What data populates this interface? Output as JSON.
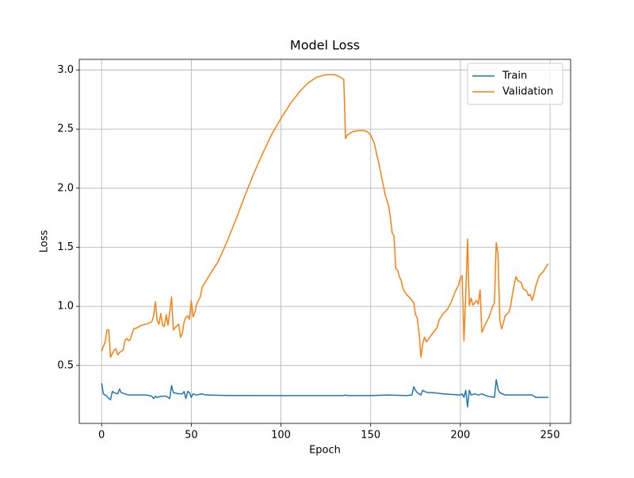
{
  "chart_data": {
    "type": "line",
    "title": "Model Loss",
    "xlabel": "Epoch",
    "ylabel": "Loss",
    "xlim": [
      -12.45,
      261.45
    ],
    "ylim": [
      0.01,
      3.09
    ],
    "xticks": [
      0,
      50,
      100,
      150,
      200,
      250
    ],
    "yticks": [
      0.5,
      {
        "value": 1,
        "label": "1.0"
      },
      1.5,
      {
        "value": 2,
        "label": "2.0"
      },
      2.5,
      {
        "value": 3,
        "label": "3.0"
      }
    ],
    "grid": true,
    "legend": "upper-right",
    "series": [
      {
        "name": "Train",
        "color": "#1f77b4",
        "x": [
          0,
          1,
          3,
          4,
          5,
          6,
          7,
          9,
          10,
          11,
          13,
          15,
          18,
          25,
          28,
          29,
          30,
          31,
          33,
          36,
          38,
          39,
          40,
          43,
          45,
          46,
          47,
          48,
          49,
          50,
          51,
          53,
          56,
          58,
          70,
          100,
          135,
          136,
          137,
          150,
          160,
          170,
          173,
          174,
          175,
          176,
          177,
          178,
          179,
          180,
          182,
          185,
          190,
          200,
          201,
          202,
          203,
          204,
          205,
          206,
          208,
          210,
          212,
          215,
          219,
          220,
          221,
          222,
          225,
          235,
          240,
          242,
          245,
          249
        ],
        "values": [
          0.35,
          0.26,
          0.24,
          0.22,
          0.21,
          0.28,
          0.27,
          0.26,
          0.3,
          0.27,
          0.26,
          0.25,
          0.25,
          0.25,
          0.24,
          0.22,
          0.24,
          0.23,
          0.24,
          0.24,
          0.22,
          0.33,
          0.27,
          0.26,
          0.26,
          0.28,
          0.22,
          0.28,
          0.27,
          0.23,
          0.26,
          0.25,
          0.26,
          0.25,
          0.246,
          0.245,
          0.245,
          0.25,
          0.245,
          0.245,
          0.25,
          0.245,
          0.25,
          0.32,
          0.29,
          0.27,
          0.26,
          0.25,
          0.29,
          0.28,
          0.27,
          0.27,
          0.26,
          0.25,
          0.26,
          0.23,
          0.29,
          0.15,
          0.29,
          0.25,
          0.26,
          0.25,
          0.26,
          0.24,
          0.23,
          0.38,
          0.3,
          0.27,
          0.25,
          0.25,
          0.25,
          0.23,
          0.23,
          0.23
        ]
      },
      {
        "name": "Validation",
        "color": "#ff7f0e",
        "x": [
          0,
          1,
          2,
          3,
          4,
          5,
          6,
          7,
          8,
          9,
          10,
          12,
          13,
          14,
          15,
          16,
          17,
          18,
          20,
          22,
          25,
          28,
          29,
          30,
          31,
          32,
          33,
          34,
          35,
          36,
          37,
          38,
          39,
          40,
          41,
          43,
          44,
          45,
          46,
          47,
          48,
          49,
          50,
          51,
          52,
          53,
          55,
          56,
          58,
          60,
          65,
          70,
          75,
          80,
          85,
          90,
          95,
          100,
          105,
          110,
          115,
          120,
          125,
          130,
          133,
          135,
          136,
          137,
          140,
          145,
          148,
          150,
          152,
          155,
          158,
          160,
          161,
          162,
          163,
          164,
          165,
          166,
          167,
          168,
          170,
          172,
          174,
          175,
          176,
          177,
          178,
          179,
          180,
          181,
          183,
          186,
          187,
          188,
          190,
          193,
          195,
          197,
          199,
          200,
          201,
          202,
          203,
          204,
          205,
          206,
          207,
          209,
          210,
          211,
          212,
          214,
          216,
          218,
          219,
          220,
          221,
          222,
          223,
          224,
          225,
          227,
          228,
          229,
          230,
          231,
          232,
          234,
          235,
          237,
          238,
          239,
          240,
          241,
          242,
          244,
          246,
          248,
          249
        ],
        "values": [
          0.62,
          0.66,
          0.7,
          0.8,
          0.8,
          0.57,
          0.6,
          0.63,
          0.64,
          0.59,
          0.61,
          0.63,
          0.71,
          0.73,
          0.71,
          0.72,
          0.77,
          0.81,
          0.82,
          0.84,
          0.85,
          0.87,
          0.92,
          1.04,
          0.88,
          0.85,
          0.94,
          0.84,
          0.83,
          0.93,
          0.84,
          0.95,
          1.08,
          0.8,
          0.82,
          0.85,
          0.74,
          0.77,
          0.87,
          0.91,
          0.92,
          0.89,
          1.05,
          0.91,
          0.95,
          1.02,
          1.08,
          1.16,
          1.21,
          1.26,
          1.38,
          1.55,
          1.74,
          1.94,
          2.13,
          2.3,
          2.46,
          2.59,
          2.71,
          2.81,
          2.89,
          2.94,
          2.96,
          2.96,
          2.94,
          2.92,
          2.42,
          2.45,
          2.48,
          2.49,
          2.48,
          2.45,
          2.38,
          2.18,
          1.95,
          1.85,
          1.75,
          1.62,
          1.6,
          1.32,
          1.31,
          1.25,
          1.22,
          1.15,
          1.1,
          1.07,
          1.03,
          0.93,
          0.9,
          0.77,
          0.57,
          0.68,
          0.74,
          0.7,
          0.74,
          0.8,
          0.82,
          0.88,
          0.93,
          0.98,
          1.04,
          1.12,
          1.18,
          1.24,
          1.26,
          0.71,
          1.1,
          1.57,
          1.01,
          1.07,
          1.01,
          1.05,
          1.02,
          1.14,
          0.78,
          0.85,
          0.91,
          1.0,
          1.03,
          1.54,
          1.44,
          0.88,
          0.81,
          0.86,
          0.92,
          0.95,
          1.0,
          1.1,
          1.18,
          1.25,
          1.22,
          1.2,
          1.15,
          1.13,
          1.09,
          1.1,
          1.05,
          1.1,
          1.17,
          1.26,
          1.29,
          1.34,
          1.36
        ]
      }
    ]
  }
}
